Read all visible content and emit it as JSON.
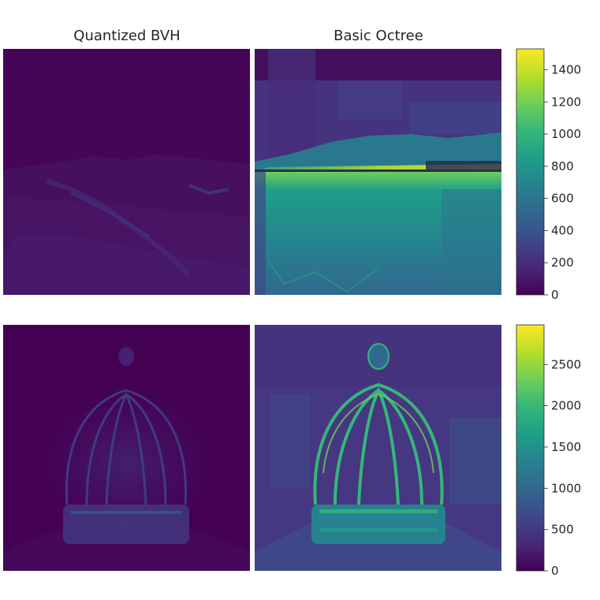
{
  "chart_data": [
    {
      "type": "heatmap",
      "panels": [
        {
          "title": "Quantized BVH",
          "scene": "landscape",
          "intensity": 0.22
        },
        {
          "title": "Basic Octree",
          "scene": "landscape",
          "intensity": 0.55
        }
      ],
      "colormap": "viridis",
      "colorbar": {
        "vmin": 0,
        "vmax": 1530,
        "ticks": [
          0,
          200,
          400,
          600,
          800,
          1000,
          1200,
          1400
        ]
      }
    },
    {
      "type": "heatmap",
      "panels": [
        {
          "title": "",
          "scene": "crown",
          "intensity": 0.18
        },
        {
          "title": "",
          "scene": "crown",
          "intensity": 0.45
        }
      ],
      "colormap": "viridis",
      "colorbar": {
        "vmin": 0,
        "vmax": 2980,
        "ticks": [
          0,
          500,
          1000,
          1500,
          2000,
          2500
        ]
      }
    }
  ],
  "colors": {
    "viridis": [
      "#440154",
      "#482878",
      "#3e4989",
      "#31688e",
      "#26828e",
      "#1f9e89",
      "#35b779",
      "#6ece58",
      "#b5de2b",
      "#fde725"
    ]
  }
}
